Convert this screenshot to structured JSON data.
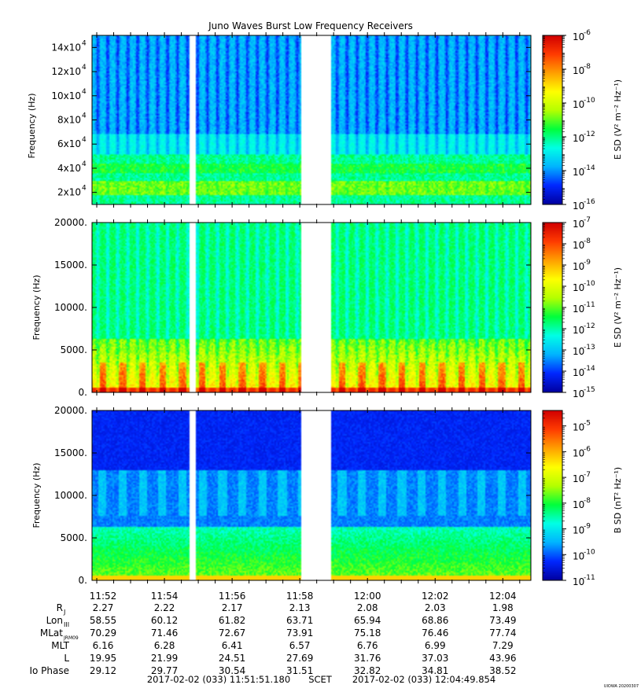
{
  "title": "Juno Waves Burst Low Frequency Receivers",
  "watermark": "UIOWA 20200307",
  "time_labels": [
    "11:52",
    "11:54",
    "11:56",
    "11:58",
    "12:00",
    "12:02",
    "12:04"
  ],
  "ephemeris": {
    "rows": [
      {
        "label": "R",
        "sub": "J",
        "values": [
          "2.27",
          "2.22",
          "2.17",
          "2.13",
          "2.08",
          "2.03",
          "1.98"
        ]
      },
      {
        "label": "Lon",
        "sub": "III",
        "values": [
          "58.55",
          "60.12",
          "61.82",
          "63.71",
          "65.94",
          "68.86",
          "73.49"
        ]
      },
      {
        "label": "MLat",
        "sub": "JRM09",
        "values": [
          "70.29",
          "71.46",
          "72.67",
          "73.91",
          "75.18",
          "76.46",
          "77.74"
        ]
      },
      {
        "label": "MLT",
        "sub": "",
        "values": [
          "6.16",
          "6.28",
          "6.41",
          "6.57",
          "6.76",
          "6.99",
          "7.29"
        ]
      },
      {
        "label": "L",
        "sub": "",
        "values": [
          "19.95",
          "21.99",
          "24.51",
          "27.69",
          "31.76",
          "37.03",
          "43.96"
        ]
      },
      {
        "label": "Io Phase",
        "sub": "",
        "values": [
          "29.12",
          "29.77",
          "30.54",
          "31.51",
          "32.82",
          "34.81",
          "38.52"
        ]
      }
    ]
  },
  "footer": {
    "start": "2017-02-02 (033) 11:51:51.180",
    "scet": "SCET",
    "end": "2017-02-02 (033) 12:04:49.854"
  },
  "colors": {
    "colormap": [
      "#0000a0",
      "#0028ff",
      "#00b4ff",
      "#00ffe6",
      "#00ff3c",
      "#b4ff00",
      "#ffff00",
      "#ffa000",
      "#ff3c00",
      "#d20000"
    ]
  },
  "chart_data": [
    {
      "type": "heatmap",
      "panel": "top",
      "title": "Juno Waves Burst Low Frequency Receivers",
      "ylabel": "Frequency (Hz)",
      "ylim": [
        10000,
        150000
      ],
      "y_ticks": [
        {
          "value": 20000,
          "mant": "2x10",
          "exp": "4"
        },
        {
          "value": 40000,
          "mant": "4x10",
          "exp": "4"
        },
        {
          "value": 60000,
          "mant": "6x10",
          "exp": "4"
        },
        {
          "value": 80000,
          "mant": "8x10",
          "exp": "4"
        },
        {
          "value": 100000,
          "mant": "10x10",
          "exp": "4"
        },
        {
          "value": 120000,
          "mant": "12x10",
          "exp": "4"
        },
        {
          "value": 140000,
          "mant": "14x10",
          "exp": "4"
        }
      ],
      "colorbar": {
        "label": "E SD (V² m⁻² Hz⁻¹)",
        "range": [
          -16,
          -6
        ],
        "ticks": [
          {
            "value": -6,
            "text": "10",
            "exp": "-6"
          },
          {
            "value": -8,
            "text": "10",
            "exp": "-8"
          },
          {
            "value": -10,
            "text": "10",
            "exp": "-10"
          },
          {
            "value": -12,
            "text": "10",
            "exp": "-12"
          },
          {
            "value": -14,
            "text": "10",
            "exp": "-14"
          },
          {
            "value": -16,
            "text": "10",
            "exp": "-16"
          }
        ]
      },
      "gaps_minutes": [
        [
          2.85,
          3.05
        ],
        [
          6.15,
          7.05
        ]
      ],
      "approx_level_profile": [
        {
          "freq": 10000,
          "log_esd": -12.2
        },
        {
          "freq": 30000,
          "log_esd": -11.8
        },
        {
          "freq": 50000,
          "log_esd": -12.6
        },
        {
          "freq": 70000,
          "log_esd": -13.2
        },
        {
          "freq": 100000,
          "log_esd": -13.6
        },
        {
          "freq": 150000,
          "log_esd": -13.8
        }
      ]
    },
    {
      "type": "heatmap",
      "panel": "middle",
      "ylabel": "Frequency (Hz)",
      "ylim": [
        0,
        20000
      ],
      "y_ticks": [
        {
          "value": 0,
          "text": "0."
        },
        {
          "value": 5000,
          "text": "5000."
        },
        {
          "value": 10000,
          "text": "10000."
        },
        {
          "value": 15000,
          "text": "15000."
        },
        {
          "value": 20000,
          "text": "20000."
        }
      ],
      "colorbar": {
        "label": "E SD (V² m⁻² Hz⁻¹)",
        "range": [
          -15,
          -7
        ],
        "ticks": [
          {
            "value": -7,
            "text": "10",
            "exp": "-7"
          },
          {
            "value": -8,
            "text": "10",
            "exp": "-8"
          },
          {
            "value": -9,
            "text": "10",
            "exp": "-9"
          },
          {
            "value": -10,
            "text": "10",
            "exp": "-10"
          },
          {
            "value": -11,
            "text": "10",
            "exp": "-11"
          },
          {
            "value": -12,
            "text": "10",
            "exp": "-12"
          },
          {
            "value": -13,
            "text": "10",
            "exp": "-13"
          },
          {
            "value": -14,
            "text": "10",
            "exp": "-14"
          },
          {
            "value": -15,
            "text": "10",
            "exp": "-15"
          }
        ]
      },
      "gaps_minutes": [
        [
          2.85,
          3.05
        ],
        [
          6.15,
          7.05
        ]
      ],
      "approx_level_profile": [
        {
          "freq": 500,
          "log_esd": -7.6
        },
        {
          "freq": 2000,
          "log_esd": -9.8
        },
        {
          "freq": 6000,
          "log_esd": -10.8
        },
        {
          "freq": 10000,
          "log_esd": -11.2
        },
        {
          "freq": 20000,
          "log_esd": -11.5
        }
      ]
    },
    {
      "type": "heatmap",
      "panel": "bottom",
      "ylabel": "Frequency (Hz)",
      "ylim": [
        0,
        20000
      ],
      "y_ticks": [
        {
          "value": 0,
          "text": "0."
        },
        {
          "value": 5000,
          "text": "5000."
        },
        {
          "value": 10000,
          "text": "10000."
        },
        {
          "value": 15000,
          "text": "15000."
        },
        {
          "value": 20000,
          "text": "20000."
        }
      ],
      "colorbar": {
        "label": "B SD (nT² Hz⁻¹)",
        "range": [
          -11,
          -4.4
        ],
        "ticks": [
          {
            "value": -5,
            "text": "10",
            "exp": "-5"
          },
          {
            "value": -6,
            "text": "10",
            "exp": "-6"
          },
          {
            "value": -7,
            "text": "10",
            "exp": "-7"
          },
          {
            "value": -8,
            "text": "10",
            "exp": "-8"
          },
          {
            "value": -9,
            "text": "10",
            "exp": "-9"
          },
          {
            "value": -10,
            "text": "10",
            "exp": "-10"
          },
          {
            "value": -11,
            "text": "10",
            "exp": "-11"
          }
        ]
      },
      "gaps_minutes": [
        [
          2.85,
          3.05
        ],
        [
          6.15,
          7.05
        ]
      ],
      "approx_level_profile": [
        {
          "freq": 500,
          "log_bsd": -6.0
        },
        {
          "freq": 3000,
          "log_bsd": -8.5
        },
        {
          "freq": 8000,
          "log_bsd": -9.5
        },
        {
          "freq": 13000,
          "log_bsd": -10.0
        },
        {
          "freq": 20000,
          "log_bsd": -10.6
        }
      ]
    }
  ]
}
